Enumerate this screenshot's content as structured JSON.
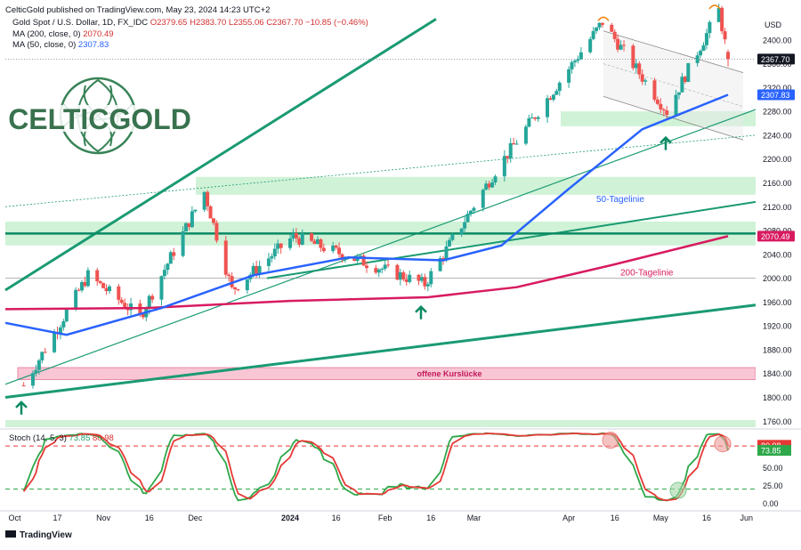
{
  "header": {
    "publisher": "CelticGold published on TradingView.com, May 23, 2024 14:23 UTC+2",
    "symbol": "Gold Spot / U.S. Dollar, 1D, FX_IDC",
    "ohlc": {
      "open": "O2379.65",
      "high": "H2383.70",
      "low": "L2355.06",
      "close": "C2367.70",
      "change": "−10.85 (−0.46%)"
    },
    "ma200": {
      "label": "MA (200, close, 0)",
      "value": "2070.49"
    },
    "ma50": {
      "label": "MA (50, close, 0)",
      "value": "2307.83"
    },
    "stoch": {
      "label": "Stoch (14, 5, 3)",
      "k": "73.85",
      "d": "80.98"
    }
  },
  "logo_text": "CELTICGOLD",
  "footer": {
    "brand": "TradingView"
  },
  "colors": {
    "bull": "#26a69a",
    "bear": "#ef5350",
    "ma50": "#2962ff",
    "ma200": "#d81b60",
    "trend": "#1a9a73",
    "zone": "#c8f0d0",
    "gap": "#f8c6d4",
    "stochK": "#2ea84a",
    "stochD": "#e53935"
  },
  "chart_data": [
    {
      "type": "candlestick",
      "currency": "USD",
      "y_ticks": [
        1760,
        1800,
        1840,
        1880,
        1920,
        1960,
        2000,
        2040,
        2080,
        2120,
        2160,
        2200,
        2240,
        2280,
        2320,
        2360,
        2400
      ],
      "ylim": [
        1750,
        2440
      ],
      "x_ticks": [
        "Oct",
        "17",
        "Nov",
        "16",
        "Dec",
        "2024",
        "16",
        "Feb",
        "16",
        "Mar",
        "Apr",
        "16",
        "May",
        "16",
        "Jun"
      ],
      "price_labels": {
        "last": "2367.70",
        "ma50": "2307.83",
        "ma200": "2070.49"
      },
      "annotations": [
        "50-Tagelinie",
        "200-Tagelinie",
        "offene Kurslücke"
      ],
      "key_prices_approx": [
        {
          "date": "2023-10-06",
          "price": 1820
        },
        {
          "date": "2023-10-27",
          "price": 2005
        },
        {
          "date": "2023-11-13",
          "price": 1935
        },
        {
          "date": "2023-12-04",
          "price": 2145
        },
        {
          "date": "2023-12-13",
          "price": 1980
        },
        {
          "date": "2024-01-02",
          "price": 2070
        },
        {
          "date": "2024-02-14",
          "price": 1990
        },
        {
          "date": "2024-03-08",
          "price": 2180
        },
        {
          "date": "2024-04-12",
          "price": 2430
        },
        {
          "date": "2024-05-03",
          "price": 2280
        },
        {
          "date": "2024-05-20",
          "price": 2450
        },
        {
          "date": "2024-05-23",
          "price": 2367.7
        }
      ]
    },
    {
      "type": "line",
      "title": "Stoch (14, 5, 3)",
      "y_ticks": [
        0,
        25,
        50,
        75
      ],
      "ylim": [
        -8,
        100
      ],
      "reference_levels": [
        20,
        80
      ],
      "last_values": {
        "k": "73.85",
        "d": "80.98"
      }
    }
  ]
}
